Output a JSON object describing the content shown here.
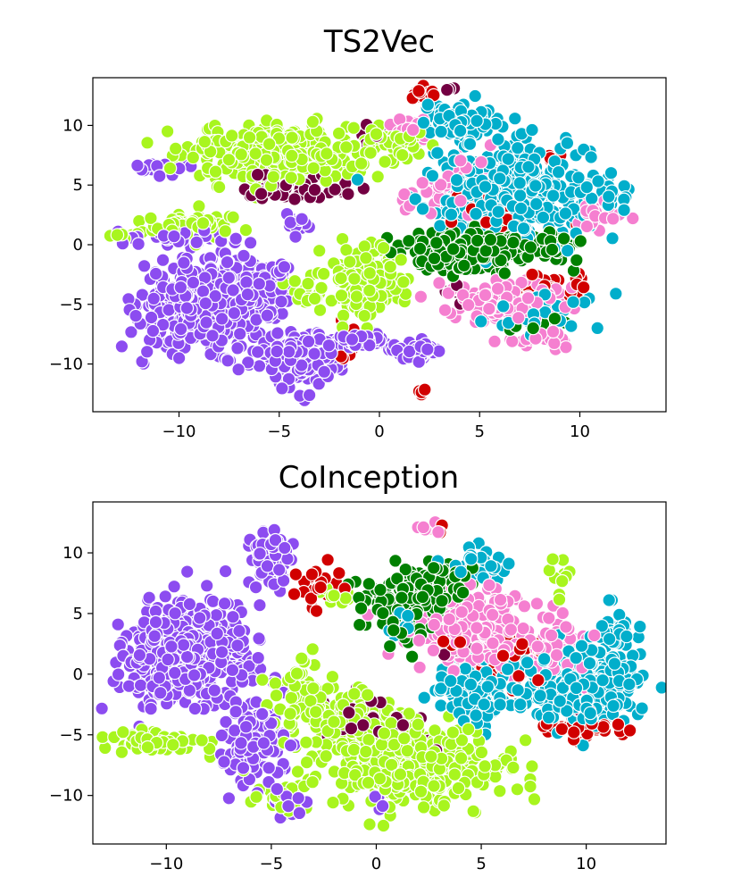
{
  "chart_data": [
    {
      "type": "scatter",
      "title": "TS2Vec",
      "xlim": [
        -14.3,
        14.3
      ],
      "ylim": [
        -14.0,
        14.0
      ],
      "xticks": [
        -10,
        -5,
        0,
        5,
        10
      ],
      "yticks": [
        -10,
        -5,
        0,
        5,
        10
      ],
      "grid": false,
      "legend": "none",
      "clusters": [
        {
          "color": "#8c4cf0",
          "blobs": [
            {
              "center": [
                -8.5,
                -5.0
              ],
              "spread": [
                2.7,
                2.8
              ],
              "n": 520
            },
            {
              "center": [
                -4.0,
                -9.5
              ],
              "spread": [
                1.6,
                1.7
              ],
              "n": 200
            },
            {
              "center": [
                -1.0,
                -8.0
              ],
              "spread": [
                1.1,
                0.5
              ],
              "n": 60
            },
            {
              "center": [
                1.8,
                -8.9
              ],
              "spread": [
                0.9,
                0.6
              ],
              "n": 50
            },
            {
              "center": [
                -9.5,
                0.6
              ],
              "spread": [
                2.3,
                0.5
              ],
              "n": 40
            },
            {
              "center": [
                -10.8,
                6.5
              ],
              "spread": [
                0.9,
                0.5
              ],
              "n": 22
            },
            {
              "center": [
                -5.2,
                -2.5
              ],
              "spread": [
                0.8,
                1.2
              ],
              "n": 26
            },
            {
              "center": [
                -4.0,
                1.7
              ],
              "spread": [
                0.6,
                0.9
              ],
              "n": 12
            }
          ]
        },
        {
          "color": "#a8f51e",
          "blobs": [
            {
              "center": [
                -5.5,
                7.5
              ],
              "spread": [
                3.6,
                1.9
              ],
              "n": 290
            },
            {
              "center": [
                -9.5,
                1.8
              ],
              "spread": [
                2.0,
                0.9
              ],
              "n": 60
            },
            {
              "center": [
                -0.5,
                -3.0
              ],
              "spread": [
                1.5,
                2.4
              ],
              "n": 160
            },
            {
              "center": [
                0.5,
                8.5
              ],
              "spread": [
                1.8,
                1.3
              ],
              "n": 70
            },
            {
              "center": [
                -3.5,
                -4.0
              ],
              "spread": [
                0.8,
                1.3
              ],
              "n": 25
            },
            {
              "center": [
                -12.5,
                0.8
              ],
              "spread": [
                0.8,
                0.3
              ],
              "n": 8
            }
          ]
        },
        {
          "color": "#01aecb",
          "blobs": [
            {
              "center": [
                6.5,
                4.5
              ],
              "spread": [
                3.3,
                3.0
              ],
              "n": 360
            },
            {
              "center": [
                4.0,
                10.2
              ],
              "spread": [
                1.6,
                1.6
              ],
              "n": 70
            },
            {
              "center": [
                8.0,
                -5.5
              ],
              "spread": [
                2.0,
                1.6
              ],
              "n": 35
            },
            {
              "center": [
                11.5,
                4.3
              ],
              "spread": [
                0.9,
                1.2
              ],
              "n": 20
            }
          ]
        },
        {
          "color": "#008000",
          "blobs": [
            {
              "center": [
                4.5,
                -0.5
              ],
              "spread": [
                2.8,
                1.4
              ],
              "n": 240
            },
            {
              "center": [
                8.5,
                0.0
              ],
              "spread": [
                1.4,
                0.8
              ],
              "n": 40
            },
            {
              "center": [
                7.5,
                -6.5
              ],
              "spread": [
                1.2,
                0.8
              ],
              "n": 12
            }
          ]
        },
        {
          "color": "#f57fd0",
          "blobs": [
            {
              "center": [
                6.0,
                -4.8
              ],
              "spread": [
                2.4,
                1.3
              ],
              "n": 140
            },
            {
              "center": [
                3.5,
                4.8
              ],
              "spread": [
                1.6,
                2.5
              ],
              "n": 50
            },
            {
              "center": [
                11.0,
                2.5
              ],
              "spread": [
                0.9,
                1.2
              ],
              "n": 30
            },
            {
              "center": [
                8.0,
                -7.8
              ],
              "spread": [
                1.4,
                0.8
              ],
              "n": 30
            },
            {
              "center": [
                1.5,
                10.0
              ],
              "spread": [
                0.8,
                1.0
              ],
              "n": 20
            }
          ]
        },
        {
          "color": "#d10000",
          "blobs": [
            {
              "center": [
                2.2,
                12.8
              ],
              "spread": [
                0.6,
                0.4
              ],
              "n": 12
            },
            {
              "center": [
                -1.5,
                -8.5
              ],
              "spread": [
                0.8,
                1.3
              ],
              "n": 10
            },
            {
              "center": [
                2.0,
                -12.3
              ],
              "spread": [
                0.3,
                0.4
              ],
              "n": 4
            },
            {
              "center": [
                9.0,
                -3.5
              ],
              "spread": [
                1.3,
                1.0
              ],
              "n": 22
            },
            {
              "center": [
                6.0,
                3.0
              ],
              "spread": [
                2.3,
                1.8
              ],
              "n": 22
            },
            {
              "center": [
                8.5,
                7.0
              ],
              "spread": [
                0.5,
                0.5
              ],
              "n": 4
            }
          ]
        },
        {
          "color": "#730042",
          "blobs": [
            {
              "center": [
                -4.0,
                4.5
              ],
              "spread": [
                2.0,
                0.9
              ],
              "n": 55
            },
            {
              "center": [
                -0.5,
                9.5
              ],
              "spread": [
                0.8,
                0.6
              ],
              "n": 6
            },
            {
              "center": [
                3.5,
                -4.0
              ],
              "spread": [
                0.6,
                0.6
              ],
              "n": 5
            },
            {
              "center": [
                3.8,
                13.0
              ],
              "spread": [
                0.5,
                0.3
              ],
              "n": 3
            }
          ]
        }
      ]
    },
    {
      "type": "scatter",
      "title": "CoInception",
      "xlim": [
        -13.5,
        13.8
      ],
      "ylim": [
        -14.0,
        14.2
      ],
      "xticks": [
        -10,
        -5,
        0,
        5,
        10
      ],
      "yticks": [
        -10,
        -5,
        0,
        5,
        10
      ],
      "grid": false,
      "legend": "none",
      "clusters": [
        {
          "color": "#8c4cf0",
          "blobs": [
            {
              "center": [
                -9.0,
                1.5
              ],
              "spread": [
                2.3,
                3.5
              ],
              "n": 520
            },
            {
              "center": [
                -5.8,
                -5.5
              ],
              "spread": [
                1.2,
                2.6
              ],
              "n": 120
            },
            {
              "center": [
                -5.0,
                9.5
              ],
              "spread": [
                0.8,
                1.8
              ],
              "n": 80
            },
            {
              "center": [
                -4.0,
                -11.0
              ],
              "spread": [
                0.8,
                0.6
              ],
              "n": 14
            },
            {
              "center": [
                0.0,
                -10.5
              ],
              "spread": [
                0.3,
                1.0
              ],
              "n": 4
            }
          ]
        },
        {
          "color": "#a8f51e",
          "blobs": [
            {
              "center": [
                1.5,
                -7.5
              ],
              "spread": [
                3.8,
                2.8
              ],
              "n": 360
            },
            {
              "center": [
                -1.5,
                -3.5
              ],
              "spread": [
                2.0,
                1.8
              ],
              "n": 140
            },
            {
              "center": [
                -10.5,
                -5.5
              ],
              "spread": [
                1.7,
                0.9
              ],
              "n": 60
            },
            {
              "center": [
                -3.5,
                -1.0
              ],
              "spread": [
                1.0,
                2.0
              ],
              "n": 40
            },
            {
              "center": [
                -4.5,
                -10.5
              ],
              "spread": [
                1.0,
                1.0
              ],
              "n": 20
            },
            {
              "center": [
                -2.0,
                6.5
              ],
              "spread": [
                1.0,
                1.0
              ],
              "n": 14
            },
            {
              "center": [
                8.5,
                8.0
              ],
              "spread": [
                0.9,
                1.3
              ],
              "n": 10
            }
          ]
        },
        {
          "color": "#008000",
          "blobs": [
            {
              "center": [
                1.5,
                6.0
              ],
              "spread": [
                1.8,
                2.4
              ],
              "n": 170
            },
            {
              "center": [
                3.5,
                8.0
              ],
              "spread": [
                1.0,
                1.2
              ],
              "n": 30
            }
          ]
        },
        {
          "color": "#f57fd0",
          "blobs": [
            {
              "center": [
                5.0,
                3.5
              ],
              "spread": [
                2.5,
                2.8
              ],
              "n": 220
            },
            {
              "center": [
                8.5,
                2.0
              ],
              "spread": [
                1.4,
                2.4
              ],
              "n": 60
            },
            {
              "center": [
                2.5,
                12.0
              ],
              "spread": [
                0.5,
                0.4
              ],
              "n": 6
            }
          ]
        },
        {
          "color": "#01aecb",
          "blobs": [
            {
              "center": [
                9.5,
                -1.0
              ],
              "spread": [
                2.4,
                2.5
              ],
              "n": 300
            },
            {
              "center": [
                4.5,
                -1.5
              ],
              "spread": [
                1.6,
                2.3
              ],
              "n": 120
            },
            {
              "center": [
                5.0,
                9.0
              ],
              "spread": [
                1.3,
                1.0
              ],
              "n": 30
            },
            {
              "center": [
                11.5,
                3.0
              ],
              "spread": [
                0.8,
                1.6
              ],
              "n": 40
            },
            {
              "center": [
                1.0,
                4.0
              ],
              "spread": [
                0.7,
                0.8
              ],
              "n": 14
            }
          ]
        },
        {
          "color": "#d10000",
          "blobs": [
            {
              "center": [
                -2.8,
                7.5
              ],
              "spread": [
                0.8,
                1.3
              ],
              "n": 30
            },
            {
              "center": [
                10.0,
                -4.5
              ],
              "spread": [
                1.5,
                0.6
              ],
              "n": 40
            },
            {
              "center": [
                6.5,
                1.0
              ],
              "spread": [
                1.4,
                1.8
              ],
              "n": 35
            },
            {
              "center": [
                3.5,
                3.0
              ],
              "spread": [
                0.6,
                0.8
              ],
              "n": 6
            },
            {
              "center": [
                3.0,
                11.8
              ],
              "spread": [
                0.4,
                0.3
              ],
              "n": 3
            }
          ]
        },
        {
          "color": "#730042",
          "blobs": [
            {
              "center": [
                -0.5,
                -3.8
              ],
              "spread": [
                1.5,
                1.6
              ],
              "n": 45
            },
            {
              "center": [
                2.5,
                -6.5
              ],
              "spread": [
                0.7,
                0.7
              ],
              "n": 8
            },
            {
              "center": [
                3.5,
                2.0
              ],
              "spread": [
                0.7,
                0.8
              ],
              "n": 8
            },
            {
              "center": [
                9.5,
                -3.5
              ],
              "spread": [
                0.6,
                0.5
              ],
              "n": 8
            }
          ]
        }
      ]
    }
  ]
}
